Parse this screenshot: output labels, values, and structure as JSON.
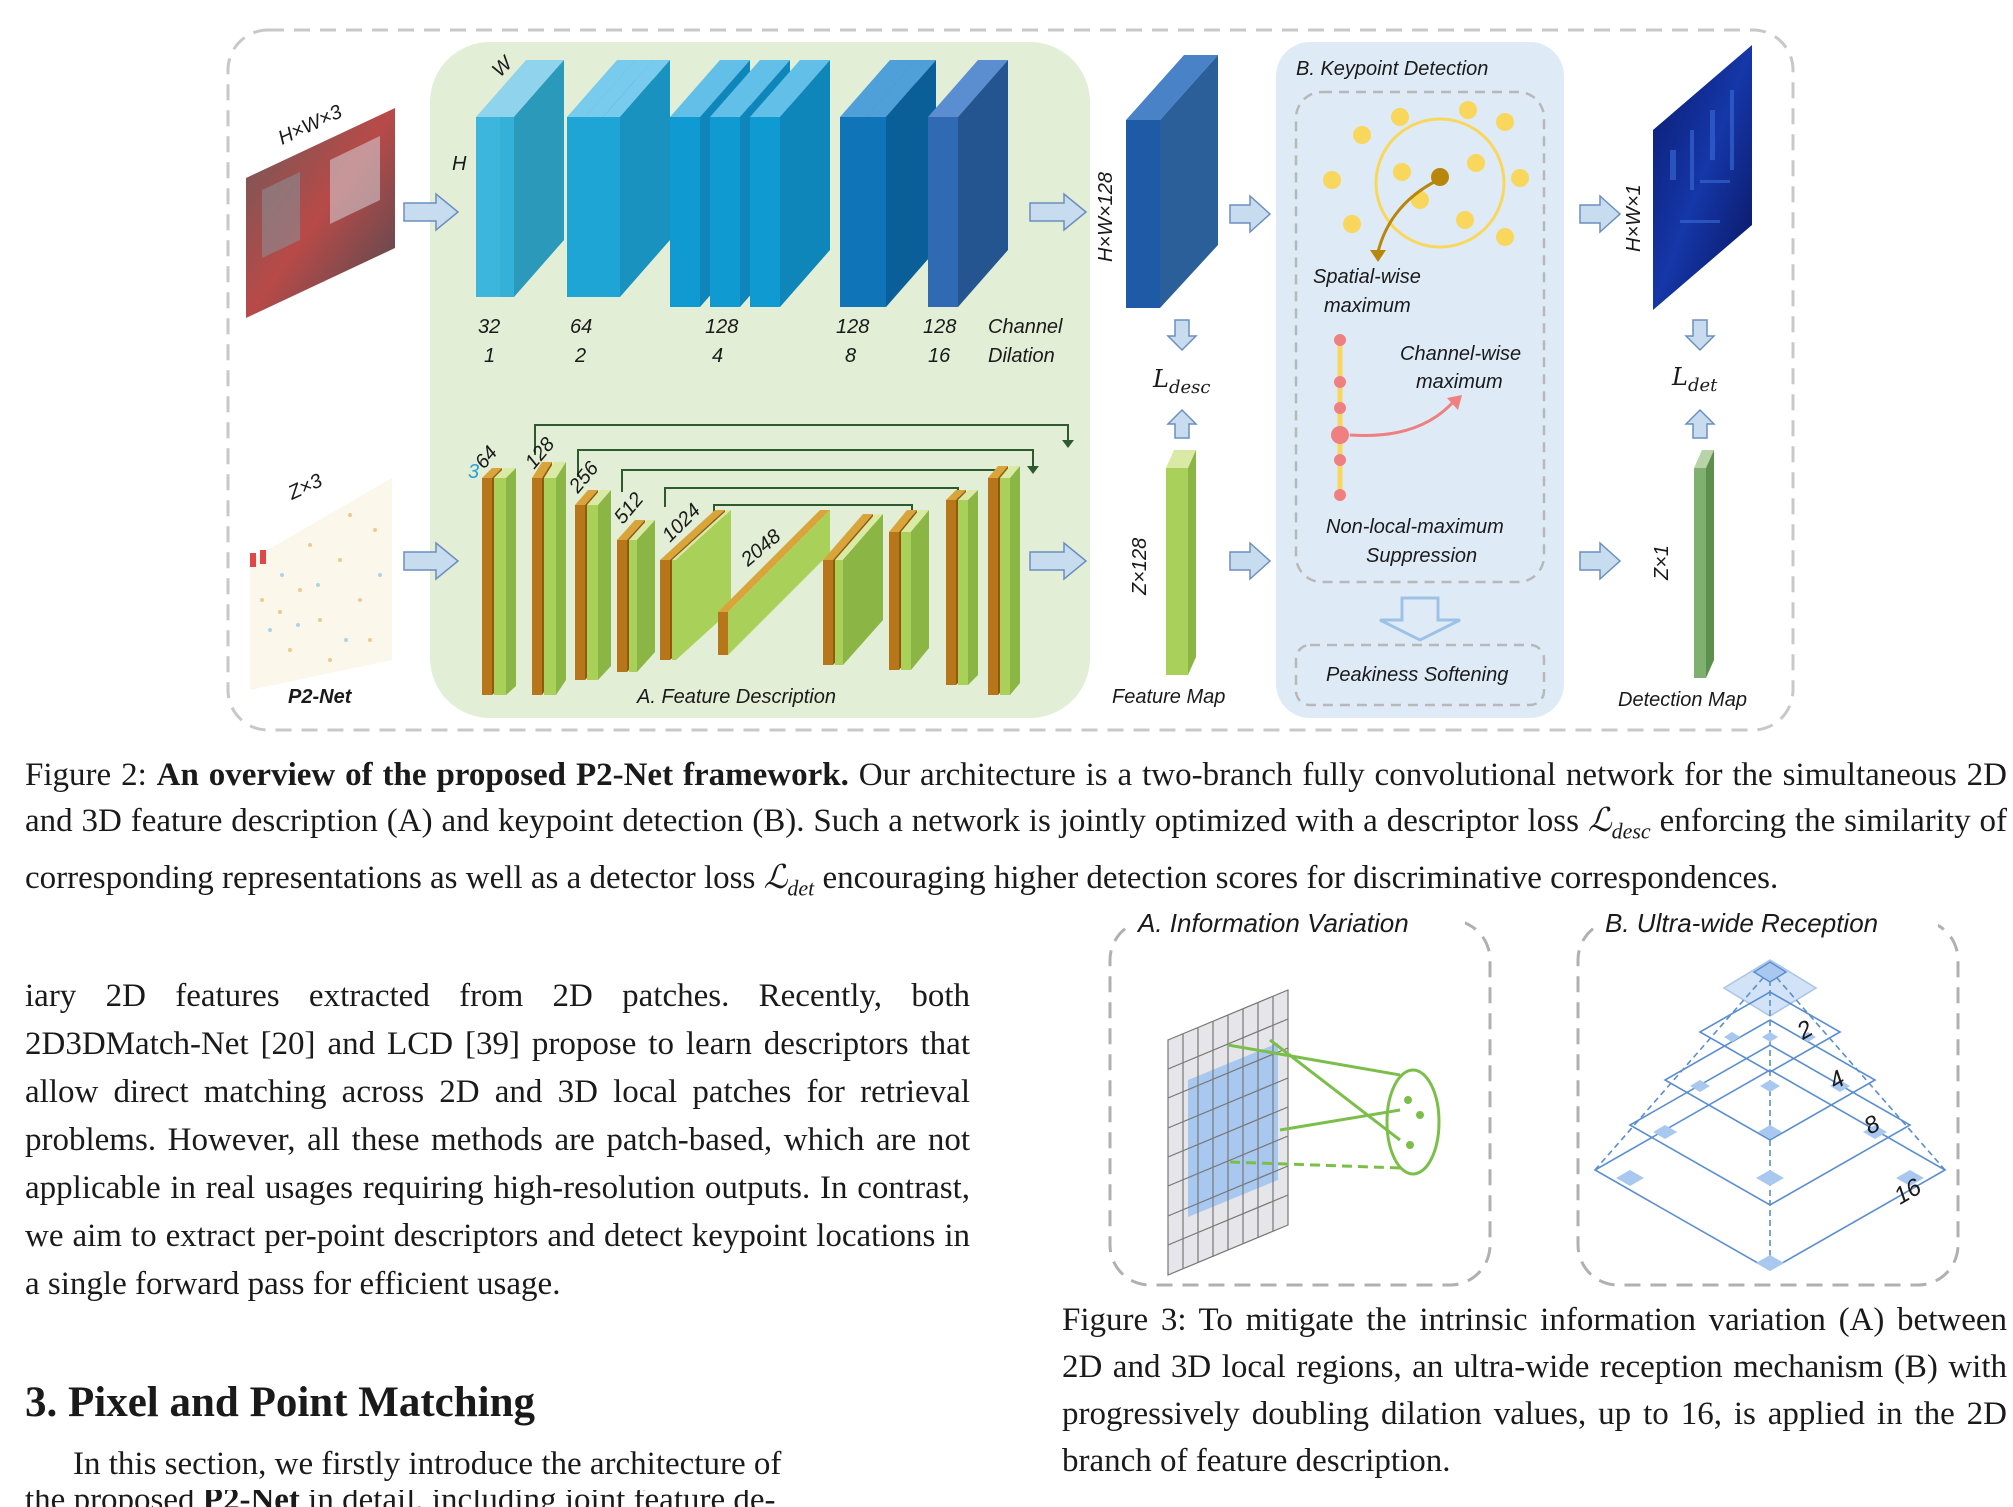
{
  "figure2": {
    "labels": {
      "img_dims": "H×W×3",
      "dim_W": "W",
      "dim_H": "H",
      "pc_dims": "Z×3",
      "net_name": "P2-Net",
      "channels_2d": [
        "32",
        "64",
        "128",
        "128",
        "128"
      ],
      "dilations_2d": [
        "1",
        "2",
        "4",
        "8",
        "16"
      ],
      "channel_word": "Channel",
      "dilation_word": "Dilation",
      "channels_3d": [
        "3",
        "64",
        "128",
        "256",
        "512",
        "1024",
        "2048"
      ],
      "section_a": "A. Feature Description",
      "fm_2d_dims": "H×W×128",
      "fm_3d_dims": "Z×128",
      "loss_desc": "L",
      "loss_desc_sub": "desc",
      "feature_map": "Feature Map",
      "section_b": "B. Keypoint Detection",
      "spatial_max_1": "Spatial-wise",
      "spatial_max_2": "maximum",
      "channel_max_1": "Channel-wise",
      "channel_max_2": "maximum",
      "nms_1": "Non-local-maximum",
      "nms_2": "Suppression",
      "peakiness": "Peakiness Softening",
      "det_2d_dims": "H×W×1",
      "det_3d_dims": "Z×1",
      "loss_det": "L",
      "loss_det_sub": "det",
      "detection_map": "Detection Map"
    },
    "caption": {
      "prefix": "Figure 2: ",
      "bold": "An overview of the proposed P2-Net framework.",
      "text1": " Our architecture is a two-branch fully convolutional network for the simultaneous 2D and 3D feature description (A) and keypoint detection (B). Such a network is jointly optimized with a descriptor loss ",
      "math1": "ℒ",
      "math1_sub": "desc",
      "text2": " enforcing the similarity of corresponding representations as well as a detector loss ",
      "math2": "ℒ",
      "math2_sub": "det",
      "text3": " encouraging higher detection scores for discriminative correspondences."
    }
  },
  "body": {
    "para1": "iary 2D features extracted from 2D patches. Recently, both 2D3DMatch-Net [20] and LCD [39] propose to learn descriptors that allow direct matching across 2D and 3D local patches for retrieval problems.  However, all these methods are patch-based, which are not applicable in real usages requiring high-resolution outputs. In contrast, we aim to extract per-point descriptors and detect keypoint locations in a single forward pass for efficient usage.",
    "section_heading": "3. Pixel and Point Matching",
    "para2_start": "In this section, we firstly introduce the architecture of",
    "para2_cut_a": "the proposed ",
    "para2_cut_bold": "P2-Net",
    "para2_cut_b": " in detail, including joint feature de-"
  },
  "figure3": {
    "panel_a_title": "A. Information Variation",
    "panel_b_title": "B. Ultra-wide Reception",
    "dilation_labels": [
      "2",
      "4",
      "8",
      "16"
    ],
    "caption": "Figure 3: To mitigate the intrinsic information variation (A) between 2D and 3D local regions, an ultra-wide reception mechanism (B) with progressively doubling dilation values, up to 16, is applied in the 2D branch of feature description."
  },
  "colors": {
    "green_panel": "#e2efd6",
    "blue_panel": "#deebf7",
    "block_2d": "#1fa3cf",
    "block_3d": "#a9d15a",
    "arrow": "#c8dcf0",
    "keypoint": "#f9d65c"
  }
}
